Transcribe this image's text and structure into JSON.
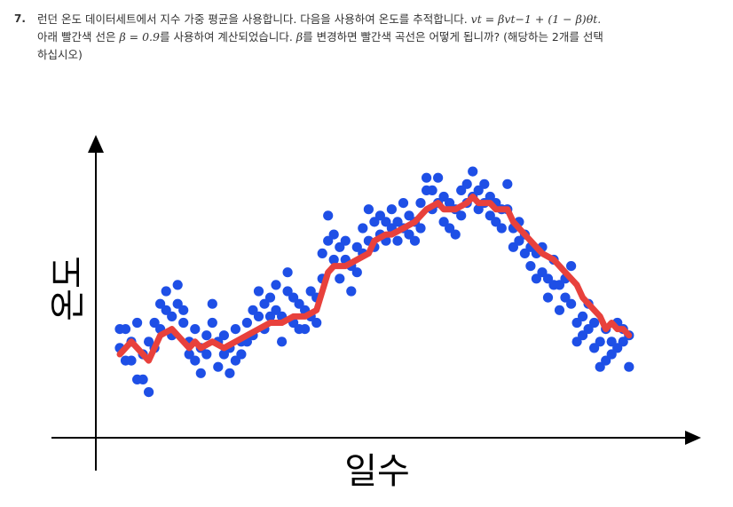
{
  "question": {
    "number": "7.",
    "line1_text": "런던 온도 데이터세트에서 지수 가중 평균을 사용합니다. 다음을 사용하여 온도를 추적합니다.",
    "line1_formula": "vt = βvt−1 + (1 − β)θt.",
    "line2_pre": "아래 빨간색 선은",
    "line2_formula": "β = 0.9",
    "line2_mid": "를 사용하여 계산되었습니다.",
    "line2_beta": "β",
    "line2_post": "를 변경하면 빨간색 곡선은 어떻게 됩니까? (해당하는 2개를 선택",
    "line3": "하십시오)"
  },
  "chart_data": {
    "type": "scatter",
    "ylabel": "온도",
    "xlabel": "일수",
    "beta": 0.9,
    "series": [
      {
        "kind": "points",
        "color": "#1e4fe6"
      },
      {
        "kind": "line",
        "color": "#e8413c"
      }
    ],
    "points": [
      [
        1,
        14
      ],
      [
        1,
        11
      ],
      [
        2,
        14
      ],
      [
        2,
        9
      ],
      [
        3,
        12
      ],
      [
        3,
        9
      ],
      [
        4,
        15
      ],
      [
        4,
        6
      ],
      [
        5,
        10
      ],
      [
        5,
        6
      ],
      [
        6,
        12
      ],
      [
        6,
        4
      ],
      [
        7,
        15
      ],
      [
        7,
        11
      ],
      [
        8,
        18
      ],
      [
        8,
        14
      ],
      [
        9,
        17
      ],
      [
        9,
        20
      ],
      [
        10,
        16
      ],
      [
        10,
        13
      ],
      [
        11,
        21
      ],
      [
        11,
        18
      ],
      [
        12,
        17
      ],
      [
        12,
        15
      ],
      [
        13,
        12
      ],
      [
        13,
        10
      ],
      [
        14,
        14
      ],
      [
        14,
        9
      ],
      [
        15,
        11
      ],
      [
        15,
        7
      ],
      [
        16,
        13
      ],
      [
        16,
        10
      ],
      [
        17,
        18
      ],
      [
        17,
        15
      ],
      [
        18,
        12
      ],
      [
        18,
        8
      ],
      [
        19,
        13
      ],
      [
        19,
        10
      ],
      [
        20,
        11
      ],
      [
        20,
        7
      ],
      [
        21,
        14
      ],
      [
        21,
        9
      ],
      [
        22,
        12
      ],
      [
        22,
        10
      ],
      [
        23,
        15
      ],
      [
        23,
        12
      ],
      [
        24,
        17
      ],
      [
        24,
        13
      ],
      [
        25,
        16
      ],
      [
        25,
        20
      ],
      [
        26,
        18
      ],
      [
        26,
        14
      ],
      [
        27,
        16
      ],
      [
        27,
        19
      ],
      [
        28,
        21
      ],
      [
        28,
        17
      ],
      [
        29,
        16
      ],
      [
        29,
        12
      ],
      [
        30,
        20
      ],
      [
        30,
        23
      ],
      [
        31,
        19
      ],
      [
        31,
        15
      ],
      [
        32,
        18
      ],
      [
        32,
        14
      ],
      [
        33,
        17
      ],
      [
        33,
        14
      ],
      [
        34,
        20
      ],
      [
        34,
        16
      ],
      [
        35,
        19
      ],
      [
        35,
        15
      ],
      [
        36,
        26
      ],
      [
        36,
        22
      ],
      [
        37,
        32
      ],
      [
        37,
        28
      ],
      [
        38,
        29
      ],
      [
        38,
        25
      ],
      [
        39,
        27
      ],
      [
        39,
        22
      ],
      [
        40,
        28
      ],
      [
        40,
        25
      ],
      [
        41,
        24
      ],
      [
        41,
        20
      ],
      [
        42,
        27
      ],
      [
        42,
        23
      ],
      [
        43,
        30
      ],
      [
        43,
        26
      ],
      [
        44,
        33
      ],
      [
        44,
        28
      ],
      [
        45,
        31
      ],
      [
        45,
        27
      ],
      [
        46,
        32
      ],
      [
        46,
        29
      ],
      [
        47,
        31
      ],
      [
        47,
        28
      ],
      [
        48,
        33
      ],
      [
        48,
        30
      ],
      [
        49,
        31
      ],
      [
        49,
        28
      ],
      [
        50,
        34
      ],
      [
        50,
        30
      ],
      [
        51,
        32
      ],
      [
        51,
        29
      ],
      [
        52,
        31
      ],
      [
        52,
        28
      ],
      [
        53,
        34
      ],
      [
        53,
        30
      ],
      [
        54,
        38
      ],
      [
        54,
        36
      ],
      [
        55,
        36
      ],
      [
        55,
        33
      ],
      [
        56,
        38
      ],
      [
        56,
        34
      ],
      [
        57,
        35
      ],
      [
        57,
        31
      ],
      [
        58,
        34
      ],
      [
        58,
        30
      ],
      [
        59,
        33
      ],
      [
        59,
        29
      ],
      [
        60,
        36
      ],
      [
        60,
        32
      ],
      [
        61,
        37
      ],
      [
        61,
        34
      ],
      [
        62,
        39
      ],
      [
        62,
        35
      ],
      [
        63,
        36
      ],
      [
        63,
        33
      ],
      [
        64,
        37
      ],
      [
        64,
        34
      ],
      [
        65,
        35
      ],
      [
        65,
        32
      ],
      [
        66,
        34
      ],
      [
        66,
        31
      ],
      [
        67,
        33
      ],
      [
        67,
        30
      ],
      [
        68,
        37
      ],
      [
        68,
        33
      ],
      [
        69,
        30
      ],
      [
        69,
        27
      ],
      [
        70,
        31
      ],
      [
        70,
        28
      ],
      [
        71,
        29
      ],
      [
        71,
        26
      ],
      [
        72,
        27
      ],
      [
        72,
        24
      ],
      [
        73,
        26
      ],
      [
        73,
        22
      ],
      [
        74,
        27
      ],
      [
        74,
        23
      ],
      [
        75,
        22
      ],
      [
        75,
        19
      ],
      [
        76,
        25
      ],
      [
        76,
        21
      ],
      [
        77,
        21
      ],
      [
        77,
        17
      ],
      [
        78,
        22
      ],
      [
        78,
        19
      ],
      [
        79,
        24
      ],
      [
        79,
        18
      ],
      [
        80,
        15
      ],
      [
        80,
        12
      ],
      [
        81,
        16
      ],
      [
        81,
        13
      ],
      [
        82,
        18
      ],
      [
        82,
        14
      ],
      [
        83,
        15
      ],
      [
        83,
        11
      ],
      [
        84,
        12
      ],
      [
        84,
        8
      ],
      [
        85,
        14
      ],
      [
        85,
        9
      ],
      [
        86,
        12
      ],
      [
        86,
        10
      ],
      [
        87,
        15
      ],
      [
        87,
        11
      ],
      [
        88,
        14
      ],
      [
        88,
        12
      ],
      [
        89,
        13
      ],
      [
        89,
        8
      ]
    ],
    "smoothed": [
      [
        1,
        10
      ],
      [
        3,
        12
      ],
      [
        5,
        10
      ],
      [
        6,
        9
      ],
      [
        8,
        13
      ],
      [
        10,
        14
      ],
      [
        11,
        13
      ],
      [
        13,
        11
      ],
      [
        14,
        12
      ],
      [
        15,
        11
      ],
      [
        17,
        12
      ],
      [
        19,
        11
      ],
      [
        21,
        12
      ],
      [
        23,
        13
      ],
      [
        25,
        14
      ],
      [
        27,
        15
      ],
      [
        29,
        15
      ],
      [
        31,
        16
      ],
      [
        33,
        16
      ],
      [
        35,
        17
      ],
      [
        36,
        20
      ],
      [
        37,
        23
      ],
      [
        38,
        24
      ],
      [
        40,
        24
      ],
      [
        42,
        25
      ],
      [
        44,
        26
      ],
      [
        45,
        28
      ],
      [
        47,
        29
      ],
      [
        48,
        29
      ],
      [
        50,
        30
      ],
      [
        52,
        31
      ],
      [
        54,
        33
      ],
      [
        56,
        34
      ],
      [
        57,
        33
      ],
      [
        59,
        33
      ],
      [
        61,
        34
      ],
      [
        62,
        35
      ],
      [
        63,
        34
      ],
      [
        65,
        34
      ],
      [
        66,
        33
      ],
      [
        68,
        33
      ],
      [
        69,
        31
      ],
      [
        70,
        30
      ],
      [
        71,
        29
      ],
      [
        73,
        27
      ],
      [
        74,
        26
      ],
      [
        76,
        25
      ],
      [
        78,
        23
      ],
      [
        80,
        21
      ],
      [
        81,
        19
      ],
      [
        83,
        17
      ],
      [
        84,
        16
      ],
      [
        85,
        14
      ],
      [
        86,
        15
      ],
      [
        87,
        14
      ],
      [
        88,
        14
      ],
      [
        89,
        13
      ]
    ]
  }
}
